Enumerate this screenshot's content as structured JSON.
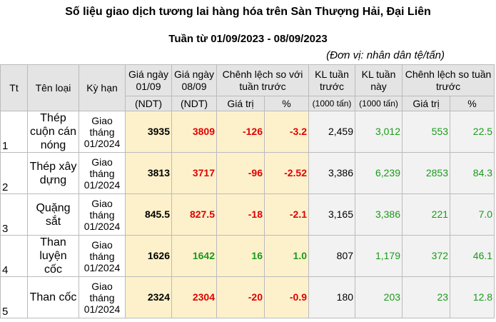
{
  "title": "Số liệu giao dịch tương lai hàng hóa trên Sàn Thượng Hải, Đại Liên",
  "subtitle": "Tuần từ 01/09/2023 - 08/09/2023",
  "unit": "(Đơn vị: nhân dân tệ/tấn)",
  "table": {
    "header": {
      "tt": "Tt",
      "name": "Tên loại",
      "term": "Kỳ hạn",
      "price1": "Giá ngày 01/09",
      "price1_unit": "(NDT)",
      "price2": "Giá ngày 08/09",
      "price2_unit": "(NDT)",
      "change": "Chênh lệch so với tuần trước",
      "change_value": "Giá trị",
      "change_pct": "%",
      "vol1": "KL tuần trước",
      "vol1_unit": "(1000 tấn)",
      "vol2": "KL tuần này",
      "vol2_unit": "(1000 tấn)",
      "vol_change": "Chênh lệch so tuần trước",
      "vol_change_value": "Giá trị",
      "vol_change_pct": "%"
    },
    "rows": [
      [
        "1",
        "Thép cuộn cán nóng",
        "Giao tháng 01/2024",
        "3935",
        "3809",
        "-126",
        "-3.2",
        "2,459",
        "3,012",
        "553",
        "22.5"
      ],
      [
        "2",
        "Thép xây dựng",
        "Giao tháng 01/2024",
        "3813",
        "3717",
        "-96",
        "-2.52",
        "3,386",
        "6,239",
        "2853",
        "84.3"
      ],
      [
        "3",
        "Quặng sắt",
        "Giao tháng 01/2024",
        "845.5",
        "827.5",
        "-18",
        "-2.1",
        "3,165",
        "3,386",
        "221",
        "7.0"
      ],
      [
        "4",
        "Than luyện cốc",
        "Giao tháng 01/2024",
        "1626",
        "1642",
        "16",
        "1.0",
        "807",
        "1,179",
        "372",
        "46.1"
      ],
      [
        "5",
        "Than cốc",
        "Giao tháng 01/2024",
        "2324",
        "2304",
        "-20",
        "-0.9",
        "180",
        "203",
        "23",
        "12.8"
      ]
    ]
  }
}
